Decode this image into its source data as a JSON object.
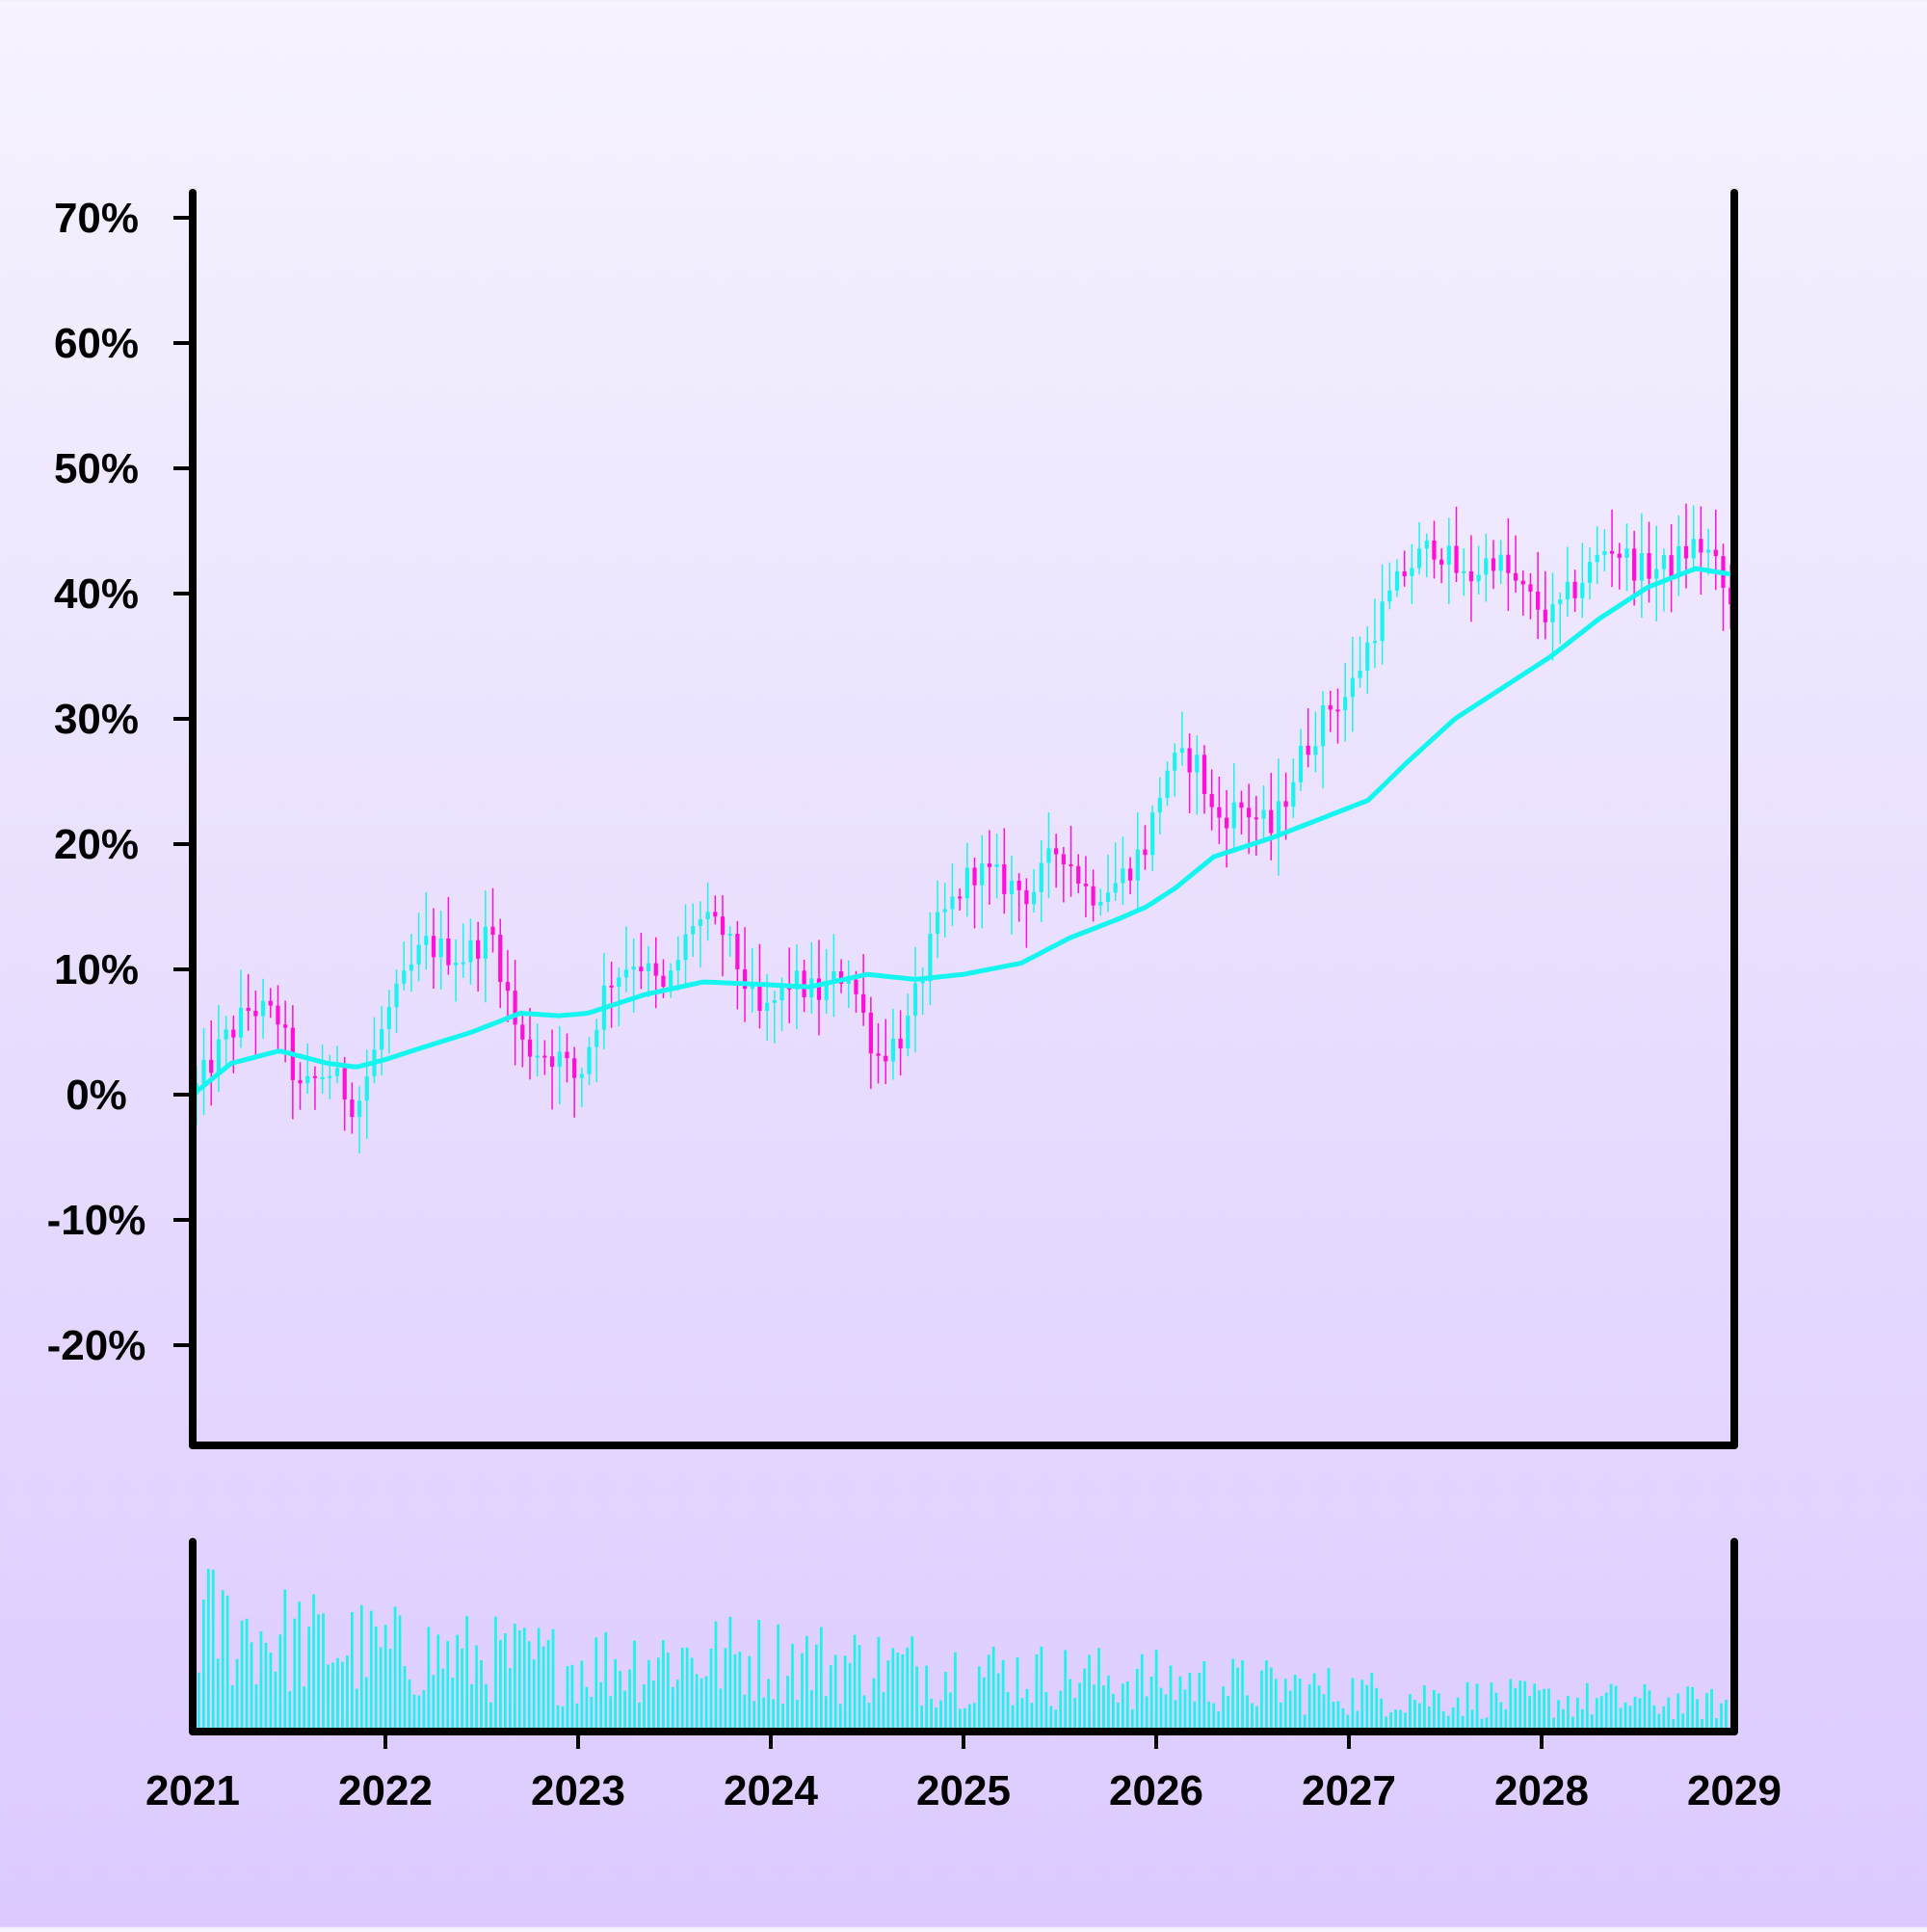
{
  "chart_data": {
    "type": "candlestick",
    "title": "",
    "xlabel": "",
    "ylabel": "",
    "x_range": [
      2021,
      2029
    ],
    "x_ticks": [
      "2021",
      "2022",
      "2023",
      "2024",
      "2025",
      "2026",
      "2027",
      "2028",
      "2029"
    ],
    "y_range": [
      -28,
      72
    ],
    "y_ticks": [
      70,
      60,
      50,
      40,
      30,
      20,
      10,
      0,
      -10,
      -20
    ],
    "y_tick_labels": [
      "70%",
      "60%",
      "50%",
      "40%",
      "30%",
      "20%",
      "10%",
      "0%",
      "-10%",
      "-20%"
    ],
    "y_unit": "%",
    "grid": false,
    "legend": "none",
    "colors": {
      "up": "#1ef2ee",
      "down": "#ff10d8",
      "moving_average": "#14f5ef",
      "volume": "#1ef2ee",
      "axis": "#000000"
    },
    "close_anchors": [
      [
        2021.0,
        0
      ],
      [
        2021.15,
        4
      ],
      [
        2021.3,
        7
      ],
      [
        2021.45,
        6
      ],
      [
        2021.55,
        0
      ],
      [
        2021.7,
        2
      ],
      [
        2021.85,
        -1
      ],
      [
        2022.0,
        6
      ],
      [
        2022.2,
        12
      ],
      [
        2022.4,
        11
      ],
      [
        2022.55,
        13
      ],
      [
        2022.7,
        4
      ],
      [
        2022.9,
        3
      ],
      [
        2023.0,
        1
      ],
      [
        2023.15,
        9
      ],
      [
        2023.3,
        11
      ],
      [
        2023.45,
        8
      ],
      [
        2023.6,
        14
      ],
      [
        2023.75,
        13
      ],
      [
        2023.95,
        6
      ],
      [
        2024.1,
        9
      ],
      [
        2024.25,
        8
      ],
      [
        2024.4,
        10
      ],
      [
        2024.55,
        3
      ],
      [
        2024.7,
        5
      ],
      [
        2024.85,
        13
      ],
      [
        2025.05,
        18
      ],
      [
        2025.2,
        17
      ],
      [
        2025.35,
        16
      ],
      [
        2025.5,
        20
      ],
      [
        2025.65,
        16
      ],
      [
        2025.8,
        17
      ],
      [
        2025.95,
        20
      ],
      [
        2026.05,
        26
      ],
      [
        2026.2,
        27
      ],
      [
        2026.3,
        22
      ],
      [
        2026.45,
        23
      ],
      [
        2026.6,
        21
      ],
      [
        2026.75,
        27
      ],
      [
        2026.9,
        31
      ],
      [
        2027.0,
        32
      ],
      [
        2027.15,
        38
      ],
      [
        2027.3,
        42
      ],
      [
        2027.45,
        44
      ],
      [
        2027.6,
        41
      ],
      [
        2027.75,
        43
      ],
      [
        2027.9,
        40
      ],
      [
        2028.05,
        38
      ],
      [
        2028.2,
        41
      ],
      [
        2028.35,
        44
      ],
      [
        2028.5,
        42
      ],
      [
        2028.65,
        42
      ],
      [
        2028.8,
        44
      ],
      [
        2028.88,
        43
      ],
      [
        2029.0,
        38
      ]
    ],
    "moving_average": [
      [
        2021.0,
        0
      ],
      [
        2021.2,
        2.5
      ],
      [
        2021.45,
        3.5
      ],
      [
        2021.7,
        2.5
      ],
      [
        2021.85,
        2.2
      ],
      [
        2022.0,
        2.8
      ],
      [
        2022.2,
        3.8
      ],
      [
        2022.45,
        5.0
      ],
      [
        2022.7,
        6.5
      ],
      [
        2022.9,
        6.3
      ],
      [
        2023.05,
        6.5
      ],
      [
        2023.35,
        8.0
      ],
      [
        2023.65,
        9.0
      ],
      [
        2023.95,
        8.8
      ],
      [
        2024.2,
        8.6
      ],
      [
        2024.5,
        9.6
      ],
      [
        2024.75,
        9.2
      ],
      [
        2025.0,
        9.6
      ],
      [
        2025.3,
        10.5
      ],
      [
        2025.55,
        12.5
      ],
      [
        2025.8,
        14.0
      ],
      [
        2025.95,
        15.0
      ],
      [
        2026.1,
        16.5
      ],
      [
        2026.3,
        19.0
      ],
      [
        2026.6,
        20.5
      ],
      [
        2026.85,
        22.0
      ],
      [
        2027.1,
        23.5
      ],
      [
        2027.3,
        26.5
      ],
      [
        2027.55,
        30.0
      ],
      [
        2027.8,
        32.5
      ],
      [
        2028.05,
        35.0
      ],
      [
        2028.3,
        38.0
      ],
      [
        2028.55,
        40.5
      ],
      [
        2028.8,
        42.0
      ],
      [
        2029.0,
        41.5
      ]
    ],
    "candles_per_year": 26,
    "volume_anchors": [
      [
        2021.0,
        0.9
      ],
      [
        2021.5,
        0.75
      ],
      [
        2022.0,
        0.65
      ],
      [
        2022.5,
        0.6
      ],
      [
        2023.0,
        0.55
      ],
      [
        2023.5,
        0.62
      ],
      [
        2024.0,
        0.6
      ],
      [
        2024.5,
        0.55
      ],
      [
        2025.0,
        0.5
      ],
      [
        2025.5,
        0.45
      ],
      [
        2026.0,
        0.42
      ],
      [
        2026.5,
        0.38
      ],
      [
        2027.0,
        0.33
      ],
      [
        2027.5,
        0.28
      ],
      [
        2028.0,
        0.26
      ],
      [
        2028.5,
        0.25
      ],
      [
        2029.0,
        0.22
      ]
    ]
  }
}
